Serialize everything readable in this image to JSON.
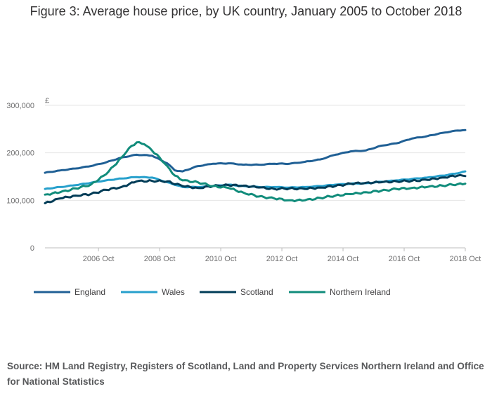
{
  "title": "Figure 3: Average house price, by UK country, January 2005 to October 2018",
  "source": "Source: HM Land Registry, Registers of Scotland, Land and Property Services Northern Ireland and Office for National Statistics",
  "chart_data": {
    "type": "line",
    "title": "Figure 3: Average house price, by UK country, January 2005 to October 2018",
    "xlabel": "",
    "ylabel": "£",
    "x_start": "2005-01",
    "x_end": "2018-10",
    "ylim": [
      0,
      300000
    ],
    "y_ticks": [
      0,
      100000,
      200000,
      300000
    ],
    "y_tick_labels": [
      "0",
      "100,000",
      "200,000",
      "300,000"
    ],
    "x_tick_labels": [
      "2006 Oct",
      "2008 Oct",
      "2010 Oct",
      "2012 Oct",
      "2014 Oct",
      "2016 Oct",
      "2018 Oct"
    ],
    "x_tick_dates": [
      "2006-10",
      "2008-10",
      "2010-10",
      "2012-10",
      "2014-10",
      "2016-10",
      "2018-10"
    ],
    "grid": "horizontal",
    "legend_position": "bottom",
    "series": [
      {
        "name": "England",
        "color": "#206095",
        "points": [
          [
            "2005-01",
            158000
          ],
          [
            "2005-07",
            163000
          ],
          [
            "2006-01",
            167000
          ],
          [
            "2006-07",
            172000
          ],
          [
            "2007-01",
            180000
          ],
          [
            "2007-07",
            190000
          ],
          [
            "2008-01",
            196000
          ],
          [
            "2008-07",
            194000
          ],
          [
            "2009-01",
            178000
          ],
          [
            "2009-04",
            163000
          ],
          [
            "2009-07",
            161000
          ],
          [
            "2010-01",
            172000
          ],
          [
            "2010-07",
            177000
          ],
          [
            "2011-01",
            178000
          ],
          [
            "2011-07",
            175000
          ],
          [
            "2012-01",
            175000
          ],
          [
            "2012-07",
            177000
          ],
          [
            "2013-01",
            177000
          ],
          [
            "2013-07",
            181000
          ],
          [
            "2014-01",
            186000
          ],
          [
            "2014-07",
            196000
          ],
          [
            "2015-01",
            203000
          ],
          [
            "2015-07",
            205000
          ],
          [
            "2016-01",
            215000
          ],
          [
            "2016-07",
            220000
          ],
          [
            "2017-01",
            230000
          ],
          [
            "2017-07",
            235000
          ],
          [
            "2018-01",
            242000
          ],
          [
            "2018-07",
            247000
          ],
          [
            "2018-10",
            248000
          ]
        ]
      },
      {
        "name": "Wales",
        "color": "#27a0cc",
        "points": [
          [
            "2005-01",
            124000
          ],
          [
            "2005-07",
            128000
          ],
          [
            "2006-01",
            132000
          ],
          [
            "2006-07",
            137000
          ],
          [
            "2007-01",
            142000
          ],
          [
            "2007-07",
            146000
          ],
          [
            "2008-01",
            149000
          ],
          [
            "2008-07",
            148000
          ],
          [
            "2009-01",
            138000
          ],
          [
            "2009-07",
            128000
          ],
          [
            "2010-01",
            128000
          ],
          [
            "2010-07",
            130000
          ],
          [
            "2011-01",
            133000
          ],
          [
            "2011-07",
            130000
          ],
          [
            "2012-01",
            128000
          ],
          [
            "2012-07",
            128000
          ],
          [
            "2013-01",
            127000
          ],
          [
            "2013-07",
            128000
          ],
          [
            "2014-01",
            130000
          ],
          [
            "2014-07",
            133000
          ],
          [
            "2015-01",
            135000
          ],
          [
            "2015-07",
            136000
          ],
          [
            "2016-01",
            139000
          ],
          [
            "2016-07",
            142000
          ],
          [
            "2017-01",
            145000
          ],
          [
            "2017-07",
            148000
          ],
          [
            "2018-01",
            152000
          ],
          [
            "2018-07",
            157000
          ],
          [
            "2018-10",
            161000
          ]
        ]
      },
      {
        "name": "Scotland",
        "color": "#003c57",
        "points": [
          [
            "2005-01",
            94000
          ],
          [
            "2005-07",
            104000
          ],
          [
            "2006-01",
            110000
          ],
          [
            "2006-07",
            113000
          ],
          [
            "2007-01",
            122000
          ],
          [
            "2007-07",
            128000
          ],
          [
            "2008-01",
            140000
          ],
          [
            "2008-07",
            141000
          ],
          [
            "2009-01",
            140000
          ],
          [
            "2009-07",
            130000
          ],
          [
            "2010-01",
            126000
          ],
          [
            "2010-07",
            130000
          ],
          [
            "2011-01",
            132000
          ],
          [
            "2011-07",
            131000
          ],
          [
            "2012-01",
            127000
          ],
          [
            "2012-07",
            124000
          ],
          [
            "2013-01",
            125000
          ],
          [
            "2013-07",
            124000
          ],
          [
            "2014-01",
            127000
          ],
          [
            "2014-07",
            130000
          ],
          [
            "2015-01",
            135000
          ],
          [
            "2015-07",
            137000
          ],
          [
            "2016-01",
            138000
          ],
          [
            "2016-07",
            140000
          ],
          [
            "2017-01",
            141000
          ],
          [
            "2017-07",
            143000
          ],
          [
            "2018-01",
            148000
          ],
          [
            "2018-07",
            152000
          ],
          [
            "2018-10",
            151000
          ]
        ]
      },
      {
        "name": "Northern Ireland",
        "color": "#118c7b",
        "points": [
          [
            "2005-01",
            112000
          ],
          [
            "2005-07",
            117000
          ],
          [
            "2006-01",
            125000
          ],
          [
            "2006-07",
            133000
          ],
          [
            "2007-01",
            155000
          ],
          [
            "2007-04",
            172000
          ],
          [
            "2007-07",
            190000
          ],
          [
            "2007-10",
            210000
          ],
          [
            "2008-01",
            222000
          ],
          [
            "2008-04",
            218000
          ],
          [
            "2008-07",
            205000
          ],
          [
            "2008-10",
            190000
          ],
          [
            "2009-01",
            172000
          ],
          [
            "2009-04",
            152000
          ],
          [
            "2009-07",
            142000
          ],
          [
            "2010-01",
            138000
          ],
          [
            "2010-07",
            130000
          ],
          [
            "2011-01",
            126000
          ],
          [
            "2011-07",
            116000
          ],
          [
            "2012-01",
            108000
          ],
          [
            "2012-07",
            104000
          ],
          [
            "2013-01",
            100000
          ],
          [
            "2013-07",
            100000
          ],
          [
            "2014-01",
            105000
          ],
          [
            "2014-07",
            110000
          ],
          [
            "2015-01",
            113000
          ],
          [
            "2015-07",
            117000
          ],
          [
            "2016-01",
            120000
          ],
          [
            "2016-07",
            124000
          ],
          [
            "2017-01",
            126000
          ],
          [
            "2017-07",
            128000
          ],
          [
            "2018-01",
            131000
          ],
          [
            "2018-07",
            134000
          ],
          [
            "2018-10",
            135000
          ]
        ]
      }
    ]
  }
}
